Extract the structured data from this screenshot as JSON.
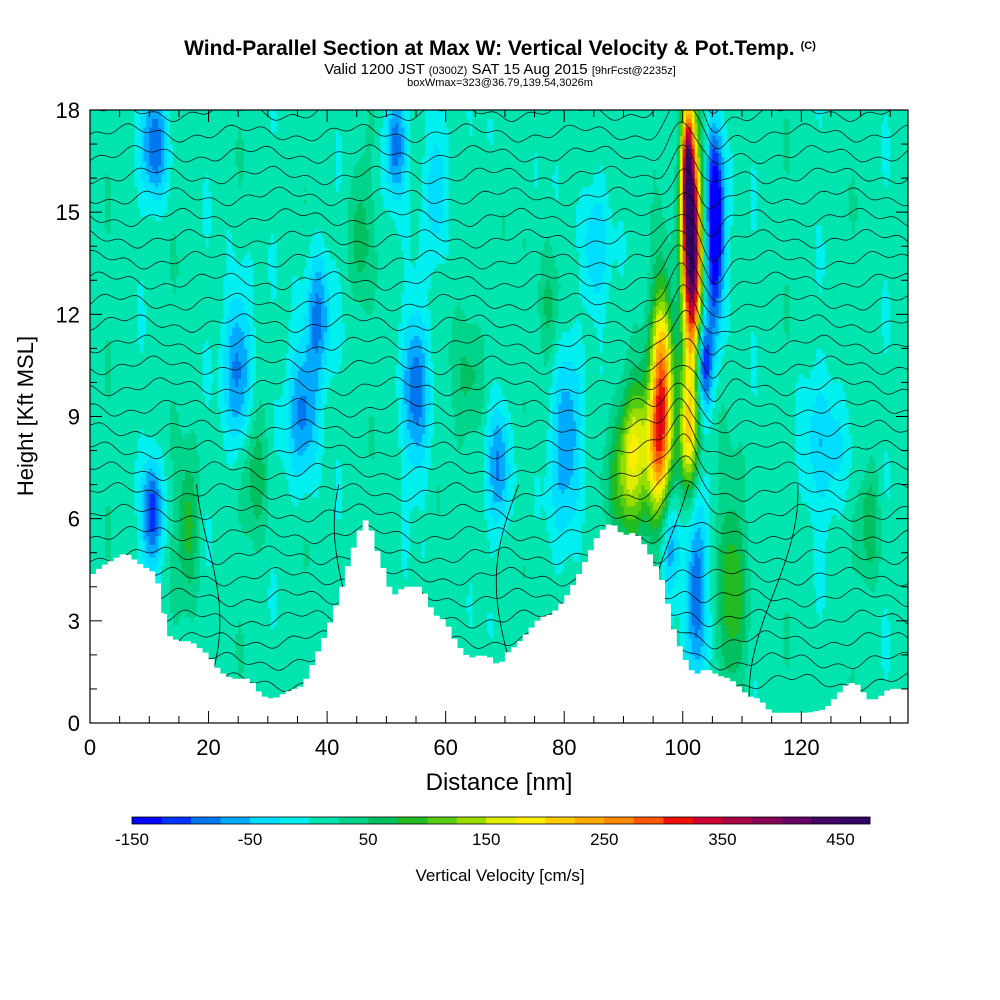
{
  "title": {
    "main": "Wind-Parallel Section at Max W: Vertical Velocity & Pot.Temp.",
    "suffix": "(C)",
    "valid_prefix": "Valid 1200 JST",
    "valid_utc": "(0300Z)",
    "valid_date": "SAT 15 Aug 2015",
    "forecast": "[9hrFcst@2235z]",
    "box": "boxWmax=323@36.79,139.54,3026m"
  },
  "chart_data": {
    "type": "heatmap",
    "xlabel": "Distance [nm]",
    "ylabel": "Height [Kft MSL]",
    "xlim": [
      0,
      138
    ],
    "ylim": [
      0,
      18
    ],
    "xticks": [
      0,
      20,
      40,
      60,
      80,
      100,
      120
    ],
    "yticks": [
      0,
      3,
      6,
      9,
      12,
      15,
      18
    ],
    "colorbar": {
      "label": "Vertical Velocity [cm/s]",
      "range": [
        -150,
        475
      ],
      "tick_values": [
        -150,
        -50,
        50,
        150,
        250,
        350,
        450
      ],
      "tick_labels": [
        "-150",
        "-50",
        "50",
        "150",
        "250",
        "350",
        "450"
      ],
      "colors": [
        "#0000ff",
        "#0033ff",
        "#0077ee",
        "#00aaff",
        "#00ddff",
        "#00f0f0",
        "#00e5b0",
        "#00d48a",
        "#00c060",
        "#22bb22",
        "#55cc11",
        "#99dd00",
        "#ddee00",
        "#ffee00",
        "#ffcc00",
        "#ffaa00",
        "#ff8800",
        "#ff5500",
        "#ee1100",
        "#cc0033",
        "#aa0044",
        "#880055",
        "#660066",
        "#440066",
        "#330066"
      ]
    },
    "terrain_kft": [
      [
        0,
        4.3
      ],
      [
        2,
        4.6
      ],
      [
        6,
        5
      ],
      [
        9,
        4.6
      ],
      [
        11,
        4.4
      ],
      [
        12,
        3.8
      ],
      [
        13,
        2.6
      ],
      [
        15,
        2.4
      ],
      [
        17,
        2.4
      ],
      [
        20,
        2.0
      ],
      [
        22,
        1.5
      ],
      [
        24,
        1.3
      ],
      [
        27,
        1.3
      ],
      [
        29,
        0.8
      ],
      [
        31,
        0.7
      ],
      [
        33,
        0.9
      ],
      [
        36,
        1.1
      ],
      [
        38,
        1.9
      ],
      [
        40,
        2.7
      ],
      [
        42,
        3.7
      ],
      [
        44,
        4.9
      ],
      [
        46,
        5.9
      ],
      [
        47,
        6.0
      ],
      [
        48,
        5.3
      ],
      [
        50,
        4.3
      ],
      [
        51,
        3.7
      ],
      [
        53,
        4.0
      ],
      [
        56,
        4.0
      ],
      [
        58,
        3.2
      ],
      [
        60,
        3.0
      ],
      [
        62,
        2.3
      ],
      [
        64,
        1.9
      ],
      [
        66,
        2.0
      ],
      [
        68,
        1.9
      ],
      [
        69,
        1.6
      ],
      [
        70,
        2.0
      ],
      [
        72,
        2.3
      ],
      [
        74,
        2.7
      ],
      [
        76,
        3.1
      ],
      [
        78,
        3.2
      ],
      [
        80,
        3.6
      ],
      [
        82,
        4.2
      ],
      [
        84,
        4.9
      ],
      [
        86,
        5.6
      ],
      [
        88,
        5.9
      ],
      [
        90,
        5.5
      ],
      [
        92,
        5.6
      ],
      [
        93,
        5.4
      ],
      [
        95,
        4.8
      ],
      [
        97,
        4.0
      ],
      [
        98,
        3.0
      ],
      [
        100,
        2.0
      ],
      [
        102,
        1.4
      ],
      [
        104,
        1.6
      ],
      [
        106,
        1.4
      ],
      [
        108,
        1.3
      ],
      [
        110,
        1.0
      ],
      [
        111,
        0.8
      ],
      [
        113,
        0.7
      ],
      [
        115,
        0.3
      ],
      [
        117,
        0.3
      ],
      [
        121,
        0.3
      ],
      [
        124,
        0.4
      ],
      [
        126,
        0.8
      ],
      [
        128,
        1.2
      ],
      [
        130,
        1.1
      ],
      [
        131,
        0.7
      ],
      [
        133,
        0.7
      ],
      [
        134,
        0.9
      ],
      [
        135,
        1.0
      ],
      [
        138,
        1.0
      ]
    ],
    "w_features": [
      {
        "x": 101.5,
        "y": 13.8,
        "sx": 1.1,
        "sy": 2.3,
        "w": 460
      },
      {
        "x": 100.8,
        "y": 16.3,
        "sx": 0.7,
        "sy": 1.4,
        "w": 300
      },
      {
        "x": 96.5,
        "y": 10.2,
        "sx": 1.3,
        "sy": 1.9,
        "w": 230
      },
      {
        "x": 96.0,
        "y": 8.0,
        "sx": 1.5,
        "sy": 1.4,
        "w": 170
      },
      {
        "x": 101.0,
        "y": 8.4,
        "sx": 1.1,
        "sy": 1.3,
        "w": 190
      },
      {
        "x": 92.0,
        "y": 8.5,
        "sx": 1.8,
        "sy": 1.2,
        "w": 110
      },
      {
        "x": 90.5,
        "y": 7.0,
        "sx": 2.2,
        "sy": 1.4,
        "w": 100
      },
      {
        "x": 108.5,
        "y": 3.9,
        "sx": 1.6,
        "sy": 2.2,
        "w": 85
      },
      {
        "x": 105.5,
        "y": 14.6,
        "sx": 1.1,
        "sy": 2.0,
        "w": -210
      },
      {
        "x": 103.5,
        "y": 10.5,
        "sx": 1.0,
        "sy": 1.0,
        "w": -150
      },
      {
        "x": 102.5,
        "y": 4.0,
        "sx": 1.2,
        "sy": 2.0,
        "w": -110
      },
      {
        "x": 98.0,
        "y": 5.3,
        "sx": 1.2,
        "sy": 1.0,
        "w": -80
      },
      {
        "x": 10.5,
        "y": 6.1,
        "sx": 1.1,
        "sy": 1.1,
        "w": -130
      },
      {
        "x": 11.0,
        "y": 17.0,
        "sx": 1.5,
        "sy": 1.1,
        "w": -110
      },
      {
        "x": 25.0,
        "y": 10.5,
        "sx": 1.6,
        "sy": 1.7,
        "w": -100
      },
      {
        "x": 36.0,
        "y": 9.2,
        "sx": 1.8,
        "sy": 1.4,
        "w": -100
      },
      {
        "x": 38.5,
        "y": 12.0,
        "sx": 1.5,
        "sy": 1.4,
        "w": -90
      },
      {
        "x": 55.0,
        "y": 9.8,
        "sx": 1.5,
        "sy": 1.7,
        "w": -100
      },
      {
        "x": 51.5,
        "y": 17.0,
        "sx": 1.2,
        "sy": 1.1,
        "w": -110
      },
      {
        "x": 58.5,
        "y": 15.8,
        "sx": 1.2,
        "sy": 1.4,
        "w": -70
      },
      {
        "x": 69.0,
        "y": 7.6,
        "sx": 1.3,
        "sy": 1.4,
        "w": -90
      },
      {
        "x": 80.5,
        "y": 8.3,
        "sx": 1.8,
        "sy": 1.9,
        "w": -90
      },
      {
        "x": 85.0,
        "y": 13.8,
        "sx": 1.6,
        "sy": 1.4,
        "w": -60
      },
      {
        "x": 124.0,
        "y": 8.0,
        "sx": 3.0,
        "sy": 1.5,
        "w": -50
      },
      {
        "x": 16.5,
        "y": 5.8,
        "sx": 1.2,
        "sy": 1.3,
        "w": 80
      },
      {
        "x": 28.0,
        "y": 7.5,
        "sx": 1.4,
        "sy": 1.4,
        "w": 55
      },
      {
        "x": 45.5,
        "y": 14.5,
        "sx": 1.2,
        "sy": 1.5,
        "w": 55
      },
      {
        "x": 77.5,
        "y": 12.0,
        "sx": 1.4,
        "sy": 1.3,
        "w": 50
      },
      {
        "x": 131.5,
        "y": 6.0,
        "sx": 1.2,
        "sy": 1.2,
        "w": 60
      },
      {
        "x": 64.0,
        "y": 10.0,
        "sx": 1.8,
        "sy": 1.4,
        "w": 45
      }
    ]
  }
}
